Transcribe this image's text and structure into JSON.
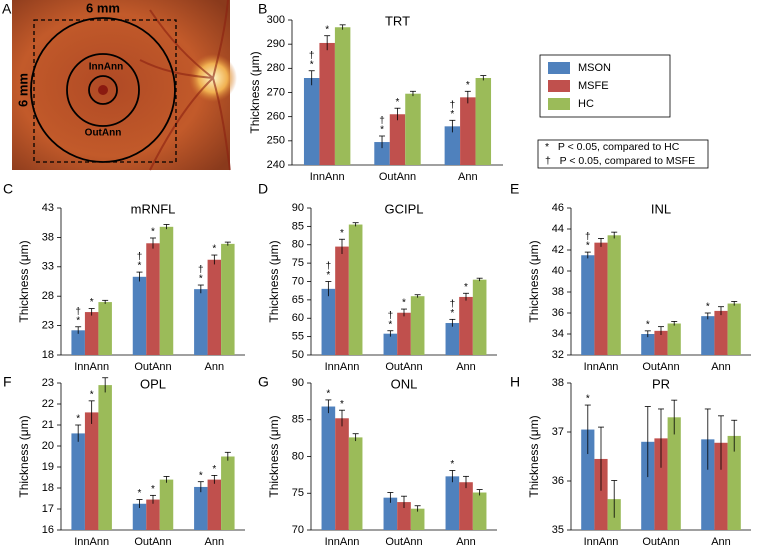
{
  "fundus": {
    "panel": "A",
    "width_label": "6 mm",
    "height_label": "6 mm",
    "inner_label": "InnAnn",
    "outer_label": "OutAnn"
  },
  "notes": [
    "*   P < 0.05, compared to HC",
    "†   P < 0.05, compared to MSFE"
  ],
  "chart_data": [
    {
      "type": "bar",
      "panel": "B",
      "title": "TRT",
      "y_label": "Thickness (μm)",
      "categories": [
        "InnAnn",
        "OutAnn",
        "Ann"
      ],
      "ylim": [
        240,
        300
      ],
      "yticks": [
        240,
        250,
        260,
        270,
        280,
        290,
        300
      ],
      "series": [
        {
          "name": "MSON",
          "color": "#4f81bd",
          "values": [
            276,
            249.5,
            256
          ],
          "errors": [
            3,
            2.5,
            2.5
          ],
          "markers": [
            [
              "†",
              "*"
            ],
            [
              "†",
              "*"
            ],
            [
              "†",
              "*"
            ]
          ]
        },
        {
          "name": "MSFE",
          "color": "#c0504d",
          "values": [
            290.5,
            261,
            268
          ],
          "errors": [
            3,
            2.5,
            2.5
          ],
          "markers": [
            [
              "*"
            ],
            [
              "*"
            ],
            [
              "*"
            ]
          ]
        },
        {
          "name": "HC",
          "color": "#9bbb59",
          "values": [
            297,
            269.5,
            276
          ],
          "errors": [
            1,
            1,
            1
          ],
          "markers": [
            [],
            [],
            []
          ]
        }
      ]
    },
    {
      "type": "bar",
      "panel": "C",
      "title": "mRNFL",
      "y_label": "Thickness (μm)",
      "categories": [
        "InnAnn",
        "OutAnn",
        "Ann"
      ],
      "ylim": [
        18,
        43
      ],
      "yticks": [
        18,
        23,
        28,
        33,
        38,
        43
      ],
      "series": [
        {
          "name": "MSON",
          "color": "#4f81bd",
          "values": [
            22.2,
            31.3,
            29.2
          ],
          "errors": [
            0.6,
            0.8,
            0.7
          ],
          "markers": [
            [
              "†",
              "*"
            ],
            [
              "†",
              "*"
            ],
            [
              "†",
              "*"
            ]
          ]
        },
        {
          "name": "MSFE",
          "color": "#c0504d",
          "values": [
            25.3,
            37,
            34.2
          ],
          "errors": [
            0.6,
            0.9,
            0.8
          ],
          "markers": [
            [
              "*"
            ],
            [
              "*"
            ],
            [
              "*"
            ]
          ]
        },
        {
          "name": "HC",
          "color": "#9bbb59",
          "values": [
            27,
            39.8,
            36.9
          ],
          "errors": [
            0.3,
            0.4,
            0.3
          ],
          "markers": [
            [],
            [],
            []
          ]
        }
      ]
    },
    {
      "type": "bar",
      "panel": "D",
      "title": "GCIPL",
      "y_label": "Thickness (μm)",
      "categories": [
        "InnAnn",
        "OutAnn",
        "Ann"
      ],
      "ylim": [
        50,
        90
      ],
      "yticks": [
        50,
        55,
        60,
        65,
        70,
        75,
        80,
        85,
        90
      ],
      "series": [
        {
          "name": "MSON",
          "color": "#4f81bd",
          "values": [
            68,
            55.8,
            58.7
          ],
          "errors": [
            2,
            0.8,
            1
          ],
          "markers": [
            [
              "†",
              "*"
            ],
            [
              "†",
              "*"
            ],
            [
              "†",
              "*"
            ]
          ]
        },
        {
          "name": "MSFE",
          "color": "#c0504d",
          "values": [
            79.5,
            61.5,
            65.8
          ],
          "errors": [
            2,
            1,
            1
          ],
          "markers": [
            [
              "*"
            ],
            [
              "*"
            ],
            [
              "*"
            ]
          ]
        },
        {
          "name": "HC",
          "color": "#9bbb59",
          "values": [
            85.5,
            66,
            70.5
          ],
          "errors": [
            0.5,
            0.4,
            0.4
          ],
          "markers": [
            [],
            [],
            []
          ]
        }
      ]
    },
    {
      "type": "bar",
      "panel": "E",
      "title": "INL",
      "y_label": "Thickness (μm)",
      "categories": [
        "InnAnn",
        "OutAnn",
        "Ann"
      ],
      "ylim": [
        32,
        46
      ],
      "yticks": [
        32,
        34,
        36,
        38,
        40,
        42,
        44,
        46
      ],
      "series": [
        {
          "name": "MSON",
          "color": "#4f81bd",
          "values": [
            41.5,
            34,
            35.7
          ],
          "errors": [
            0.3,
            0.3,
            0.3
          ],
          "markers": [
            [
              "†",
              "*"
            ],
            [
              "*"
            ],
            [
              "*"
            ]
          ]
        },
        {
          "name": "MSFE",
          "color": "#c0504d",
          "values": [
            42.7,
            34.3,
            36.2
          ],
          "errors": [
            0.4,
            0.4,
            0.4
          ],
          "markers": [
            [],
            [],
            []
          ]
        },
        {
          "name": "HC",
          "color": "#9bbb59",
          "values": [
            43.4,
            35,
            36.9
          ],
          "errors": [
            0.3,
            0.2,
            0.2
          ],
          "markers": [
            [],
            [],
            []
          ]
        }
      ]
    },
    {
      "type": "bar",
      "panel": "F",
      "title": "OPL",
      "y_label": "Thickness (μm)",
      "categories": [
        "InnAnn",
        "OutAnn",
        "Ann"
      ],
      "ylim": [
        16,
        23
      ],
      "yticks": [
        16,
        17,
        18,
        19,
        20,
        21,
        22,
        23
      ],
      "series": [
        {
          "name": "MSON",
          "color": "#4f81bd",
          "values": [
            20.6,
            17.25,
            18.05
          ],
          "errors": [
            0.4,
            0.2,
            0.25
          ],
          "markers": [
            [
              "*"
            ],
            [
              "*"
            ],
            [
              "*"
            ]
          ]
        },
        {
          "name": "MSFE",
          "color": "#c0504d",
          "values": [
            21.6,
            17.45,
            18.4
          ],
          "errors": [
            0.55,
            0.2,
            0.2
          ],
          "markers": [
            [
              "*"
            ],
            [
              "*"
            ],
            [
              "*"
            ]
          ]
        },
        {
          "name": "HC",
          "color": "#9bbb59",
          "values": [
            22.9,
            18.4,
            19.5
          ],
          "errors": [
            0.35,
            0.15,
            0.2
          ],
          "markers": [
            [],
            [],
            []
          ]
        }
      ]
    },
    {
      "type": "bar",
      "panel": "G",
      "title": "ONL",
      "y_label": "Thickness (μm)",
      "categories": [
        "InnAnn",
        "OutAnn",
        "Ann"
      ],
      "ylim": [
        70,
        90
      ],
      "yticks": [
        70,
        75,
        80,
        85,
        90
      ],
      "series": [
        {
          "name": "MSON",
          "color": "#4f81bd",
          "values": [
            86.8,
            74.4,
            77.3
          ],
          "errors": [
            0.9,
            0.7,
            0.8
          ],
          "markers": [
            [
              "*"
            ],
            [],
            [
              "*"
            ]
          ]
        },
        {
          "name": "MSFE",
          "color": "#c0504d",
          "values": [
            85.2,
            73.8,
            76.5
          ],
          "errors": [
            1.1,
            0.8,
            0.8
          ],
          "markers": [
            [
              "*"
            ],
            [],
            []
          ]
        },
        {
          "name": "HC",
          "color": "#9bbb59",
          "values": [
            82.6,
            72.9,
            75.1
          ],
          "errors": [
            0.5,
            0.4,
            0.4
          ],
          "markers": [
            [],
            [],
            []
          ]
        }
      ]
    },
    {
      "type": "bar",
      "panel": "H",
      "title": "PR",
      "y_label": "Thickness (μm)",
      "categories": [
        "InnAnn",
        "OutAnn",
        "Ann"
      ],
      "ylim": [
        35,
        38
      ],
      "yticks": [
        35,
        36,
        37,
        38
      ],
      "series": [
        {
          "name": "MSON",
          "color": "#4f81bd",
          "values": [
            37.05,
            36.8,
            36.85
          ],
          "errors": [
            0.5,
            0.72,
            0.62
          ],
          "markers": [
            [
              "*"
            ],
            [],
            []
          ]
        },
        {
          "name": "MSFE",
          "color": "#c0504d",
          "values": [
            36.45,
            36.87,
            36.78
          ],
          "errors": [
            0.65,
            0.6,
            0.55
          ],
          "markers": [
            [],
            [],
            []
          ]
        },
        {
          "name": "HC",
          "color": "#9bbb59",
          "values": [
            35.63,
            37.3,
            36.92
          ],
          "errors": [
            0.38,
            0.35,
            0.32
          ],
          "markers": [
            [],
            [],
            []
          ]
        }
      ]
    }
  ]
}
